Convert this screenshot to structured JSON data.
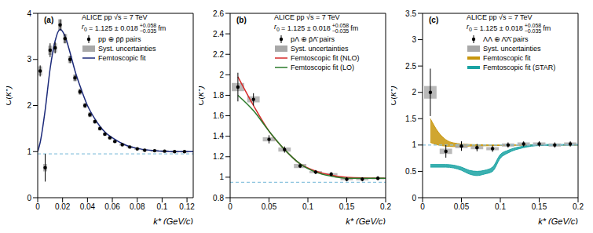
{
  "chart_data": [
    {
      "type": "scatter",
      "panel_label": "(a)",
      "experiment": "ALICE pp √s = 7 TeV",
      "radius": {
        "symbol": "r",
        "symbol_sub": "0",
        "text": "= 1.125 ± 0.018",
        "sup": "+0.058",
        "sub": "−0.035",
        "unit": "fm"
      },
      "x_label": "k* (GeV/c)",
      "y_label": "C(k*)",
      "xlim": [
        0,
        0.125
      ],
      "xticks": [
        0,
        0.02,
        0.04,
        0.06,
        0.08,
        0.1,
        0.12
      ],
      "ylim": [
        0,
        4
      ],
      "yticks": [
        0,
        1,
        2,
        3,
        4
      ],
      "legend": "upper right",
      "series": [
        {
          "name": "pp ⊕ p̄p̄ pairs",
          "type": "scatter",
          "color": "#000000",
          "marker": "circle",
          "syst_name": "Syst. uncertainties",
          "syst_color": "#a8a8a8",
          "x": [
            0.002,
            0.006,
            0.01,
            0.014,
            0.018,
            0.022,
            0.026,
            0.03,
            0.034,
            0.038,
            0.042,
            0.046,
            0.05,
            0.054,
            0.058,
            0.062,
            0.068,
            0.074,
            0.08,
            0.086,
            0.094,
            0.102,
            0.11,
            0.118
          ],
          "values": [
            2.75,
            0.65,
            3.2,
            3.25,
            3.75,
            3.45,
            3.0,
            2.6,
            2.3,
            2.0,
            1.8,
            1.65,
            1.5,
            1.38,
            1.3,
            1.22,
            1.15,
            1.1,
            1.06,
            1.03,
            1.02,
            1.01,
            1.0,
            1.0
          ],
          "errors": [
            0.12,
            0.3,
            0.15,
            0.12,
            0.12,
            0.1,
            0.08,
            0.07,
            0.06,
            0.05,
            0.05,
            0.04,
            0.04,
            0.03,
            0.03,
            0.03,
            0.02,
            0.02,
            0.02,
            0.02,
            0.02,
            0.02,
            0.02,
            0.02
          ],
          "syst": [
            0.1,
            0.08,
            0.1,
            0.1,
            0.12,
            0.1,
            0.08,
            0.07,
            0.06,
            0.05,
            0.05,
            0.04,
            0.04,
            0.03,
            0.03,
            0.03,
            0.02,
            0.02,
            0.02,
            0.02,
            0.02,
            0.02,
            0.02,
            0.02
          ]
        },
        {
          "name": "Femtoscopic fit",
          "type": "line",
          "color": "#1c2a7a",
          "line_style": "solid",
          "x": [
            0.0,
            0.002,
            0.006,
            0.01,
            0.014,
            0.018,
            0.022,
            0.026,
            0.03,
            0.035,
            0.04,
            0.045,
            0.05,
            0.055,
            0.06,
            0.07,
            0.08,
            0.09,
            0.1,
            0.11,
            0.125
          ],
          "values": [
            1.0,
            1.2,
            1.9,
            2.8,
            3.4,
            3.65,
            3.5,
            3.15,
            2.75,
            2.35,
            2.0,
            1.75,
            1.55,
            1.4,
            1.3,
            1.15,
            1.07,
            1.03,
            1.01,
            1.0,
            1.0
          ]
        },
        {
          "type": "line",
          "color": "#8cc4de",
          "line_style": "dashed",
          "x": [
            0,
            0.125
          ],
          "values": [
            0.95,
            0.95
          ]
        }
      ]
    },
    {
      "type": "scatter",
      "panel_label": "(b)",
      "experiment": "ALICE pp √s = 7 TeV",
      "radius": {
        "symbol": "r",
        "symbol_sub": "0",
        "text": "= 1.125 ± 0.018",
        "sup": "+0.058",
        "sub": "−0.035",
        "unit": "fm"
      },
      "x_label": "k* (GeV/c)",
      "y_label": "C(k*)",
      "xlim": [
        0,
        0.2
      ],
      "xticks": [
        0,
        0.05,
        0.1,
        0.15,
        0.2
      ],
      "ylim": [
        0.8,
        2.6
      ],
      "yticks": [
        0.8,
        1,
        1.2,
        1.4,
        1.6,
        1.8,
        2,
        2.2,
        2.4,
        2.6
      ],
      "legend": "upper right",
      "series": [
        {
          "name": "pΛ ⊕ p̄Λ̄ pairs",
          "type": "scatter",
          "color": "#000000",
          "marker": "circle",
          "syst_name": "Syst. uncertainties",
          "syst_color": "#a8a8a8",
          "x": [
            0.01,
            0.03,
            0.05,
            0.07,
            0.09,
            0.11,
            0.13,
            0.15,
            0.17,
            0.19
          ],
          "values": [
            1.88,
            1.76,
            1.37,
            1.27,
            1.11,
            1.05,
            1.03,
            0.98,
            0.98,
            0.99
          ],
          "errors": [
            0.14,
            0.06,
            0.04,
            0.03,
            0.02,
            0.02,
            0.02,
            0.02,
            0.02,
            0.02
          ],
          "syst": [
            0.04,
            0.03,
            0.02,
            0.02,
            0.02,
            0.01,
            0.01,
            0.01,
            0.01,
            0.01
          ]
        },
        {
          "name": "Femtoscopic fit (NLO)",
          "type": "line",
          "color": "#d62a2a",
          "line_style": "solid",
          "x": [
            0.01,
            0.03,
            0.05,
            0.07,
            0.09,
            0.11,
            0.13,
            0.15,
            0.2
          ],
          "values": [
            1.98,
            1.7,
            1.45,
            1.27,
            1.13,
            1.06,
            1.02,
            1.0,
            0.99
          ]
        },
        {
          "name": "Femtoscopic fit (LO)",
          "type": "line",
          "color": "#2a7a2a",
          "line_style": "solid",
          "x": [
            0.01,
            0.03,
            0.05,
            0.07,
            0.09,
            0.11,
            0.13,
            0.15,
            0.2
          ],
          "values": [
            1.8,
            1.65,
            1.45,
            1.27,
            1.13,
            1.05,
            1.01,
            0.99,
            0.99
          ]
        },
        {
          "type": "line",
          "color": "#8cc4de",
          "line_style": "dashed",
          "x": [
            0,
            0.2
          ],
          "values": [
            0.95,
            0.95
          ]
        }
      ]
    },
    {
      "type": "scatter",
      "panel_label": "(c)",
      "experiment": "ALICE pp √s = 7 TeV",
      "radius": {
        "symbol": "r",
        "symbol_sub": "0",
        "text": "= 1.125 ± 0.018",
        "sup": "+0.058",
        "sub": "−0.035",
        "unit": "fm"
      },
      "x_label": "k* (GeV/c)",
      "y_label": "C(k*)",
      "xlim": [
        0,
        0.2
      ],
      "xticks": [
        0,
        0.05,
        0.1,
        0.15,
        0.2
      ],
      "ylim": [
        0,
        3.5
      ],
      "yticks": [
        0,
        0.5,
        1,
        1.5,
        2,
        2.5,
        3,
        3.5
      ],
      "legend": "upper right",
      "series": [
        {
          "name": "ΛΛ ⊕ Λ̄Λ̄ pairs",
          "type": "scatter",
          "color": "#000000",
          "marker": "circle",
          "syst_name": "Syst. uncertainties",
          "syst_color": "#a8a8a8",
          "x": [
            0.01,
            0.03,
            0.05,
            0.07,
            0.09,
            0.11,
            0.13,
            0.15,
            0.17,
            0.19
          ],
          "values": [
            2.0,
            0.88,
            0.98,
            0.95,
            0.93,
            1.0,
            1.02,
            1.02,
            1.0,
            1.02
          ],
          "errors": [
            0.45,
            0.12,
            0.09,
            0.07,
            0.06,
            0.05,
            0.05,
            0.05,
            0.05,
            0.05
          ],
          "syst": [
            0.12,
            0.05,
            0.04,
            0.03,
            0.03,
            0.03,
            0.03,
            0.03,
            0.03,
            0.03
          ]
        },
        {
          "name": "Femtoscopic fit",
          "type": "band",
          "color": "#c8960c",
          "x": [
            0.01,
            0.02,
            0.03,
            0.04,
            0.06,
            0.1,
            0.15,
            0.2
          ],
          "low": [
            1.05,
            1.0,
            0.98,
            0.97,
            0.98,
            0.99,
            1.0,
            1.0
          ],
          "high": [
            1.5,
            1.25,
            1.1,
            1.04,
            1.01,
            1.0,
            1.0,
            1.0
          ]
        },
        {
          "name": "Femtoscopic fit (STAR)",
          "type": "band",
          "color": "#1aa3a3",
          "x": [
            0.01,
            0.03,
            0.05,
            0.06,
            0.07,
            0.08,
            0.09,
            0.1,
            0.11,
            0.13,
            0.15,
            0.2
          ],
          "low": [
            0.58,
            0.58,
            0.52,
            0.45,
            0.42,
            0.45,
            0.5,
            0.75,
            0.85,
            0.95,
            0.99,
            1.0
          ],
          "high": [
            0.63,
            0.63,
            0.58,
            0.52,
            0.5,
            0.52,
            0.58,
            0.82,
            0.9,
            0.98,
            1.01,
            1.01
          ]
        },
        {
          "type": "line",
          "color": "#8cc4de",
          "line_style": "dashed",
          "x": [
            0,
            0.2
          ],
          "values": [
            1,
            1
          ]
        }
      ]
    }
  ]
}
